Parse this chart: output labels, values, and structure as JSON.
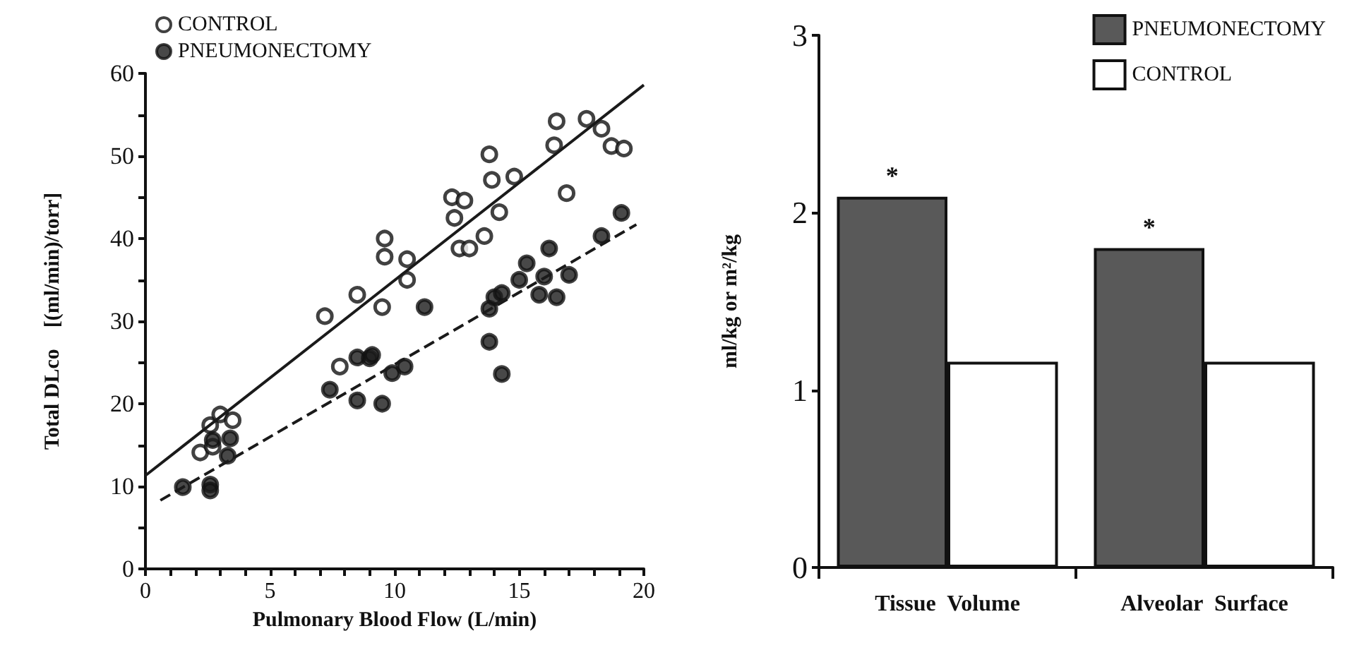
{
  "chart_data": [
    {
      "type": "scatter",
      "xlabel": "Pulmonary Blood Flow (L/min)",
      "ylabel": "Total DLco    [(ml/min)/torr]",
      "xlim": [
        0,
        20
      ],
      "ylim": [
        0,
        60
      ],
      "xticks": [
        0,
        {
          "value": 1,
          "label": null
        },
        {
          "value": 2,
          "label": null
        },
        {
          "value": 3,
          "label": null
        },
        {
          "value": 4,
          "label": null
        },
        5,
        {
          "value": 6,
          "label": null
        },
        {
          "value": 7,
          "label": null
        },
        {
          "value": 8,
          "label": null
        },
        {
          "value": 9,
          "label": null
        },
        10,
        {
          "value": 11,
          "label": null
        },
        {
          "value": 12,
          "label": null
        },
        {
          "value": 13,
          "label": null
        },
        {
          "value": 14,
          "label": null
        },
        15,
        {
          "value": 16,
          "label": null
        },
        {
          "value": 17,
          "label": null
        },
        {
          "value": 18,
          "label": null
        },
        {
          "value": 19,
          "label": null
        },
        20
      ],
      "yticks": [
        0,
        {
          "value": 5,
          "label": null
        },
        10,
        {
          "value": 15,
          "label": null
        },
        20,
        {
          "value": 25,
          "label": null
        },
        30,
        {
          "value": 35,
          "label": null
        },
        40,
        {
          "value": 45,
          "label": null
        },
        50,
        {
          "value": 55,
          "label": null
        },
        60
      ],
      "grid": false,
      "legend": "top left",
      "marker": "circle",
      "series": [
        {
          "name": "CONTROL",
          "color": "#ffffff",
          "x": [
            2.2,
            2.6,
            2.7,
            3.0,
            3.5,
            7.2,
            7.8,
            8.5,
            9.5,
            9.6,
            9.6,
            10.5,
            10.5,
            12.3,
            12.8,
            12.4,
            12.6,
            13.0,
            13.6,
            13.8,
            13.9,
            14.2,
            14.8,
            16.5,
            16.4,
            16.9,
            17.7,
            18.3,
            18.7,
            19.2
          ],
          "values": [
            14.1,
            17.4,
            14.8,
            18.7,
            18.0,
            30.6,
            24.5,
            33.2,
            31.7,
            40.0,
            37.8,
            37.5,
            35.0,
            45.0,
            44.6,
            42.5,
            38.8,
            38.8,
            40.3,
            50.2,
            47.1,
            43.2,
            47.5,
            54.2,
            51.3,
            45.5,
            54.5,
            53.3,
            51.2,
            50.9
          ]
        },
        {
          "name": "PNEUMONECTOMY",
          "color": "#1a1a1a",
          "x": [
            1.5,
            2.6,
            2.6,
            2.7,
            3.4,
            3.3,
            7.4,
            8.5,
            9.0,
            9.1,
            8.5,
            9.5,
            9.9,
            10.4,
            11.2,
            13.8,
            14.0,
            14.3,
            13.8,
            14.3,
            15.0,
            15.3,
            16.0,
            16.2,
            15.8,
            16.5,
            17.0,
            18.3,
            19.1
          ],
          "values": [
            9.9,
            10.2,
            9.5,
            15.6,
            15.8,
            13.7,
            21.7,
            25.6,
            25.5,
            25.9,
            20.4,
            20.0,
            23.7,
            24.5,
            31.7,
            31.5,
            32.9,
            33.4,
            27.5,
            23.6,
            35.0,
            37.0,
            35.4,
            38.8,
            33.2,
            32.9,
            35.6,
            40.3,
            43.1
          ]
        },
        {
          "type": "line",
          "color": "#1a1a1a",
          "line_style": "solid",
          "marker": "none",
          "x": [
            0,
            20
          ],
          "values": [
            11.3,
            58.6
          ]
        },
        {
          "type": "line",
          "color": "#1a1a1a",
          "line_style": "dashed",
          "marker": "none",
          "x": [
            0.6,
            19.7
          ],
          "values": [
            8.3,
            41.7
          ]
        }
      ]
    },
    {
      "type": "bar",
      "ylabel": "ml/kg or m²/kg",
      "categories": [
        "Tissue  Volume",
        "Alveolar  Surface"
      ],
      "ylim": [
        0,
        3
      ],
      "yticks": [
        0,
        1,
        2,
        3
      ],
      "grid": false,
      "legend": "top right",
      "series": [
        {
          "name": "PNEUMONECTOMY",
          "color": "#595959",
          "values": [
            2.09,
            1.8
          ]
        },
        {
          "name": "CONTROL",
          "color": "#ffffff",
          "values": [
            1.16,
            1.16
          ]
        }
      ],
      "annotations": [
        {
          "text": "*",
          "x": "Tissue  Volume",
          "y": 2.09
        },
        {
          "text": "*",
          "x": "Alveolar  Surface",
          "y": 1.8
        }
      ]
    }
  ]
}
